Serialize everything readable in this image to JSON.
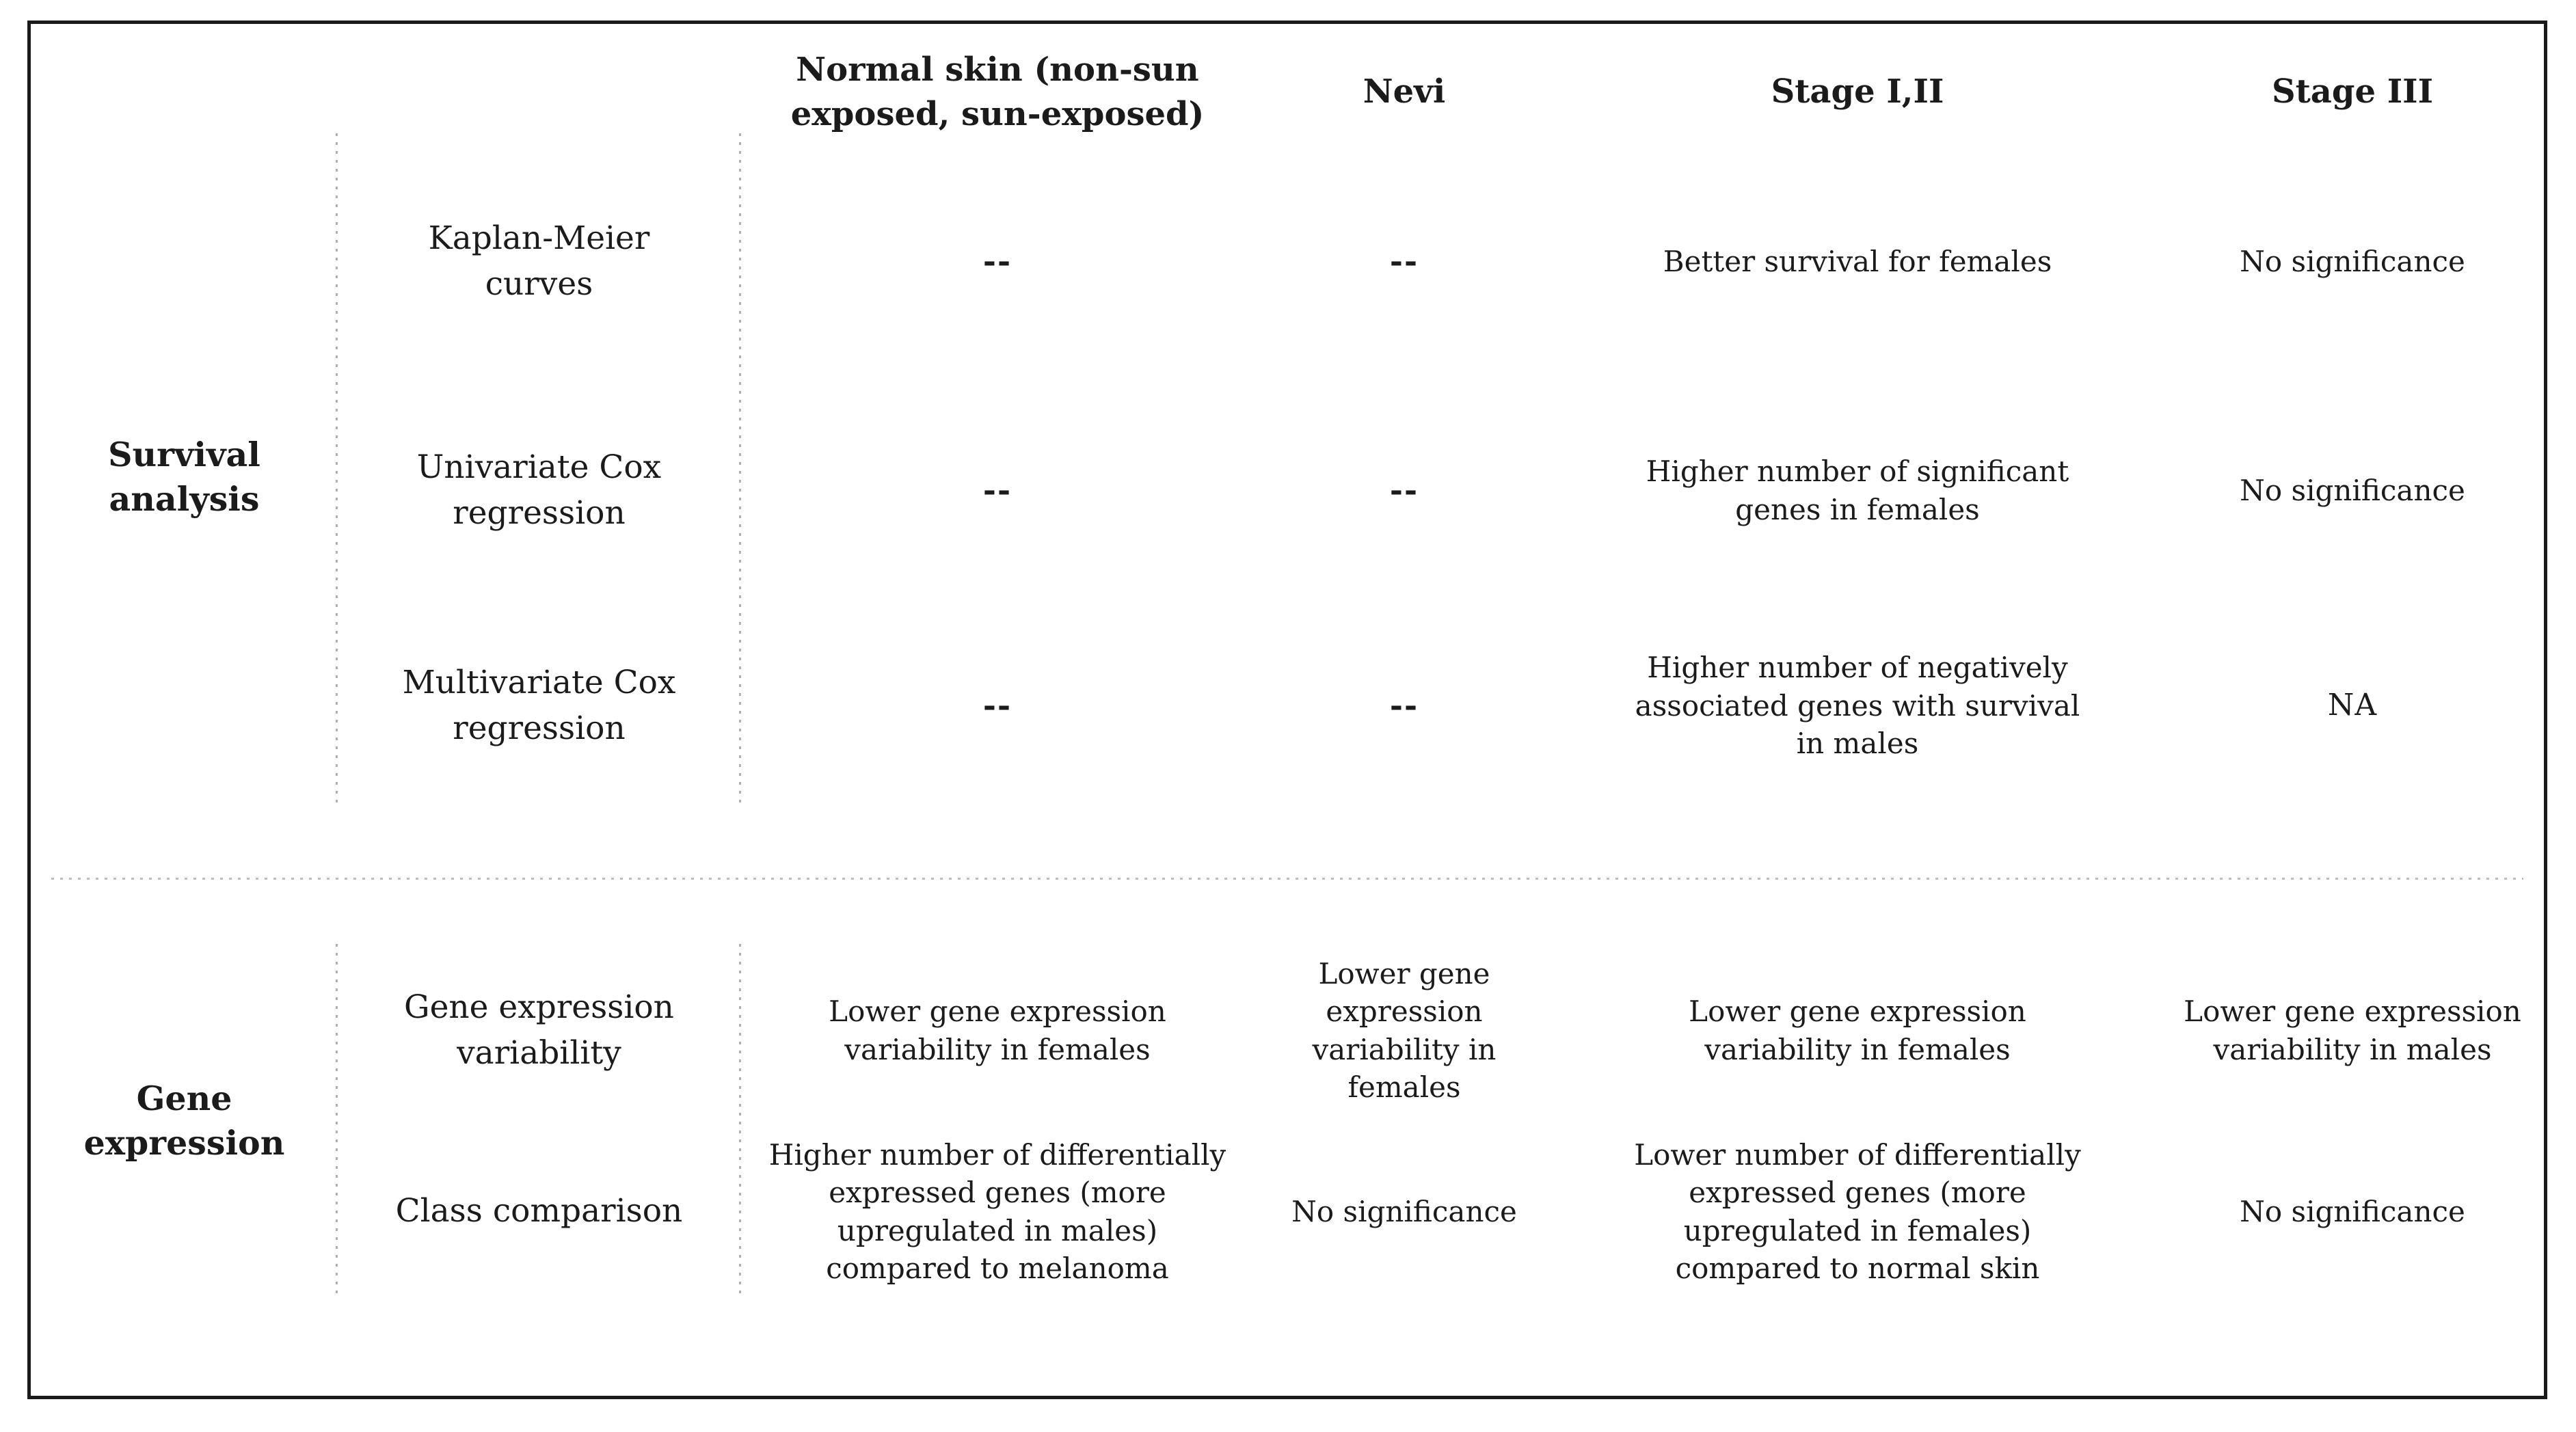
{
  "table": {
    "column_headers": {
      "normal_skin": "Normal skin (non-sun\nexposed, sun-exposed)",
      "nevi": "Nevi",
      "stage_i_ii": "Stage I,II",
      "stage_iii": "Stage III"
    },
    "sections": [
      {
        "group": "Survival\nanalysis",
        "rows": [
          {
            "method": "Kaplan-Meier\ncurves",
            "cells": [
              "--",
              "--",
              "Better survival for females",
              "No significance"
            ]
          },
          {
            "method": "Univariate Cox\nregression",
            "cells": [
              "--",
              "--",
              "Higher number of significant\ngenes in females",
              "No significance"
            ]
          },
          {
            "method": "Multivariate Cox\nregression",
            "cells": [
              "--",
              "--",
              "Higher number of negatively\nassociated genes with survival\nin males",
              "NA"
            ]
          }
        ]
      },
      {
        "group": "Gene\nexpression",
        "rows": [
          {
            "method": "Gene expression\nvariability",
            "cells": [
              "Lower gene expression\nvariability in females",
              "Lower gene expression\nvariability in females",
              "Lower gene expression\nvariability in females",
              "Lower gene expression\nvariability in males"
            ]
          },
          {
            "method": "Class comparison",
            "cells": [
              "Higher number of differentially\nexpressed genes (more\nupregulated in males)\ncompared to melanoma",
              "No significance",
              "Lower number of differentially\nexpressed genes (more\nupregulated in females)\ncompared to normal skin",
              "No significance"
            ]
          }
        ]
      }
    ],
    "colors": {
      "text": "#1b1b1b",
      "frame_border": "#1a1a1a",
      "separator_dotted": "#b4b4b4",
      "background": "#ffffff"
    }
  }
}
